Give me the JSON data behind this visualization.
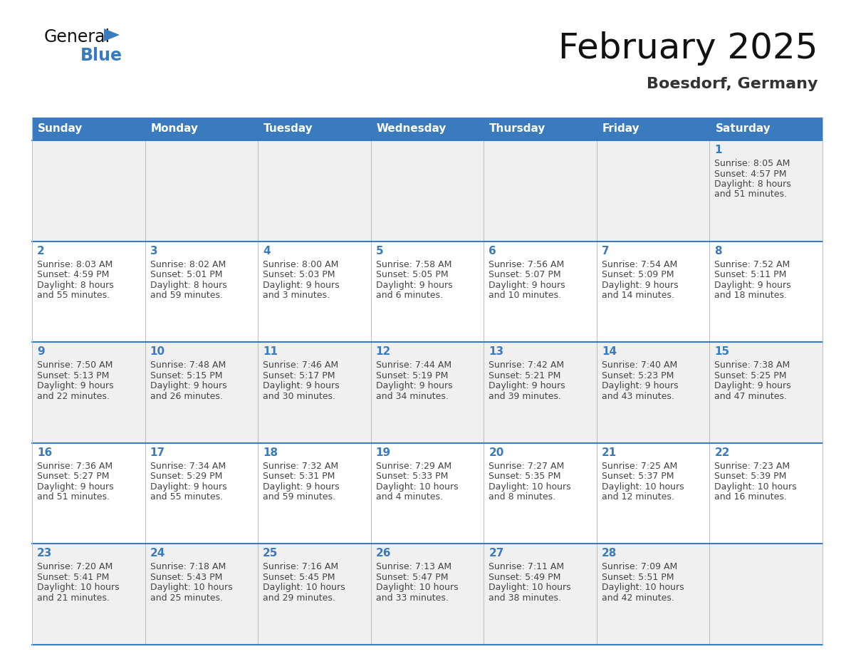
{
  "title": "February 2025",
  "subtitle": "Boesdorf, Germany",
  "days_of_week": [
    "Sunday",
    "Monday",
    "Tuesday",
    "Wednesday",
    "Thursday",
    "Friday",
    "Saturday"
  ],
  "header_bg": "#3a7abf",
  "header_text": "#ffffff",
  "row_bg_odd": "#f0f0f0",
  "row_bg_even": "#ffffff",
  "day_num_color": "#3a7abf",
  "info_text_color": "#444444",
  "border_color": "#3a7abf",
  "light_border": "#bbbbbb",
  "calendar_data": [
    [
      null,
      null,
      null,
      null,
      null,
      null,
      {
        "day": 1,
        "sunrise": "8:05 AM",
        "sunset": "4:57 PM",
        "daylight": "8 hours and 51 minutes."
      }
    ],
    [
      {
        "day": 2,
        "sunrise": "8:03 AM",
        "sunset": "4:59 PM",
        "daylight": "8 hours and 55 minutes."
      },
      {
        "day": 3,
        "sunrise": "8:02 AM",
        "sunset": "5:01 PM",
        "daylight": "8 hours and 59 minutes."
      },
      {
        "day": 4,
        "sunrise": "8:00 AM",
        "sunset": "5:03 PM",
        "daylight": "9 hours and 3 minutes."
      },
      {
        "day": 5,
        "sunrise": "7:58 AM",
        "sunset": "5:05 PM",
        "daylight": "9 hours and 6 minutes."
      },
      {
        "day": 6,
        "sunrise": "7:56 AM",
        "sunset": "5:07 PM",
        "daylight": "9 hours and 10 minutes."
      },
      {
        "day": 7,
        "sunrise": "7:54 AM",
        "sunset": "5:09 PM",
        "daylight": "9 hours and 14 minutes."
      },
      {
        "day": 8,
        "sunrise": "7:52 AM",
        "sunset": "5:11 PM",
        "daylight": "9 hours and 18 minutes."
      }
    ],
    [
      {
        "day": 9,
        "sunrise": "7:50 AM",
        "sunset": "5:13 PM",
        "daylight": "9 hours and 22 minutes."
      },
      {
        "day": 10,
        "sunrise": "7:48 AM",
        "sunset": "5:15 PM",
        "daylight": "9 hours and 26 minutes."
      },
      {
        "day": 11,
        "sunrise": "7:46 AM",
        "sunset": "5:17 PM",
        "daylight": "9 hours and 30 minutes."
      },
      {
        "day": 12,
        "sunrise": "7:44 AM",
        "sunset": "5:19 PM",
        "daylight": "9 hours and 34 minutes."
      },
      {
        "day": 13,
        "sunrise": "7:42 AM",
        "sunset": "5:21 PM",
        "daylight": "9 hours and 39 minutes."
      },
      {
        "day": 14,
        "sunrise": "7:40 AM",
        "sunset": "5:23 PM",
        "daylight": "9 hours and 43 minutes."
      },
      {
        "day": 15,
        "sunrise": "7:38 AM",
        "sunset": "5:25 PM",
        "daylight": "9 hours and 47 minutes."
      }
    ],
    [
      {
        "day": 16,
        "sunrise": "7:36 AM",
        "sunset": "5:27 PM",
        "daylight": "9 hours and 51 minutes."
      },
      {
        "day": 17,
        "sunrise": "7:34 AM",
        "sunset": "5:29 PM",
        "daylight": "9 hours and 55 minutes."
      },
      {
        "day": 18,
        "sunrise": "7:32 AM",
        "sunset": "5:31 PM",
        "daylight": "9 hours and 59 minutes."
      },
      {
        "day": 19,
        "sunrise": "7:29 AM",
        "sunset": "5:33 PM",
        "daylight": "10 hours and 4 minutes."
      },
      {
        "day": 20,
        "sunrise": "7:27 AM",
        "sunset": "5:35 PM",
        "daylight": "10 hours and 8 minutes."
      },
      {
        "day": 21,
        "sunrise": "7:25 AM",
        "sunset": "5:37 PM",
        "daylight": "10 hours and 12 minutes."
      },
      {
        "day": 22,
        "sunrise": "7:23 AM",
        "sunset": "5:39 PM",
        "daylight": "10 hours and 16 minutes."
      }
    ],
    [
      {
        "day": 23,
        "sunrise": "7:20 AM",
        "sunset": "5:41 PM",
        "daylight": "10 hours and 21 minutes."
      },
      {
        "day": 24,
        "sunrise": "7:18 AM",
        "sunset": "5:43 PM",
        "daylight": "10 hours and 25 minutes."
      },
      {
        "day": 25,
        "sunrise": "7:16 AM",
        "sunset": "5:45 PM",
        "daylight": "10 hours and 29 minutes."
      },
      {
        "day": 26,
        "sunrise": "7:13 AM",
        "sunset": "5:47 PM",
        "daylight": "10 hours and 33 minutes."
      },
      {
        "day": 27,
        "sunrise": "7:11 AM",
        "sunset": "5:49 PM",
        "daylight": "10 hours and 38 minutes."
      },
      {
        "day": 28,
        "sunrise": "7:09 AM",
        "sunset": "5:51 PM",
        "daylight": "10 hours and 42 minutes."
      },
      null
    ]
  ],
  "logo_text_general": "General",
  "logo_text_blue": "Blue",
  "logo_triangle_color": "#3a7abf"
}
